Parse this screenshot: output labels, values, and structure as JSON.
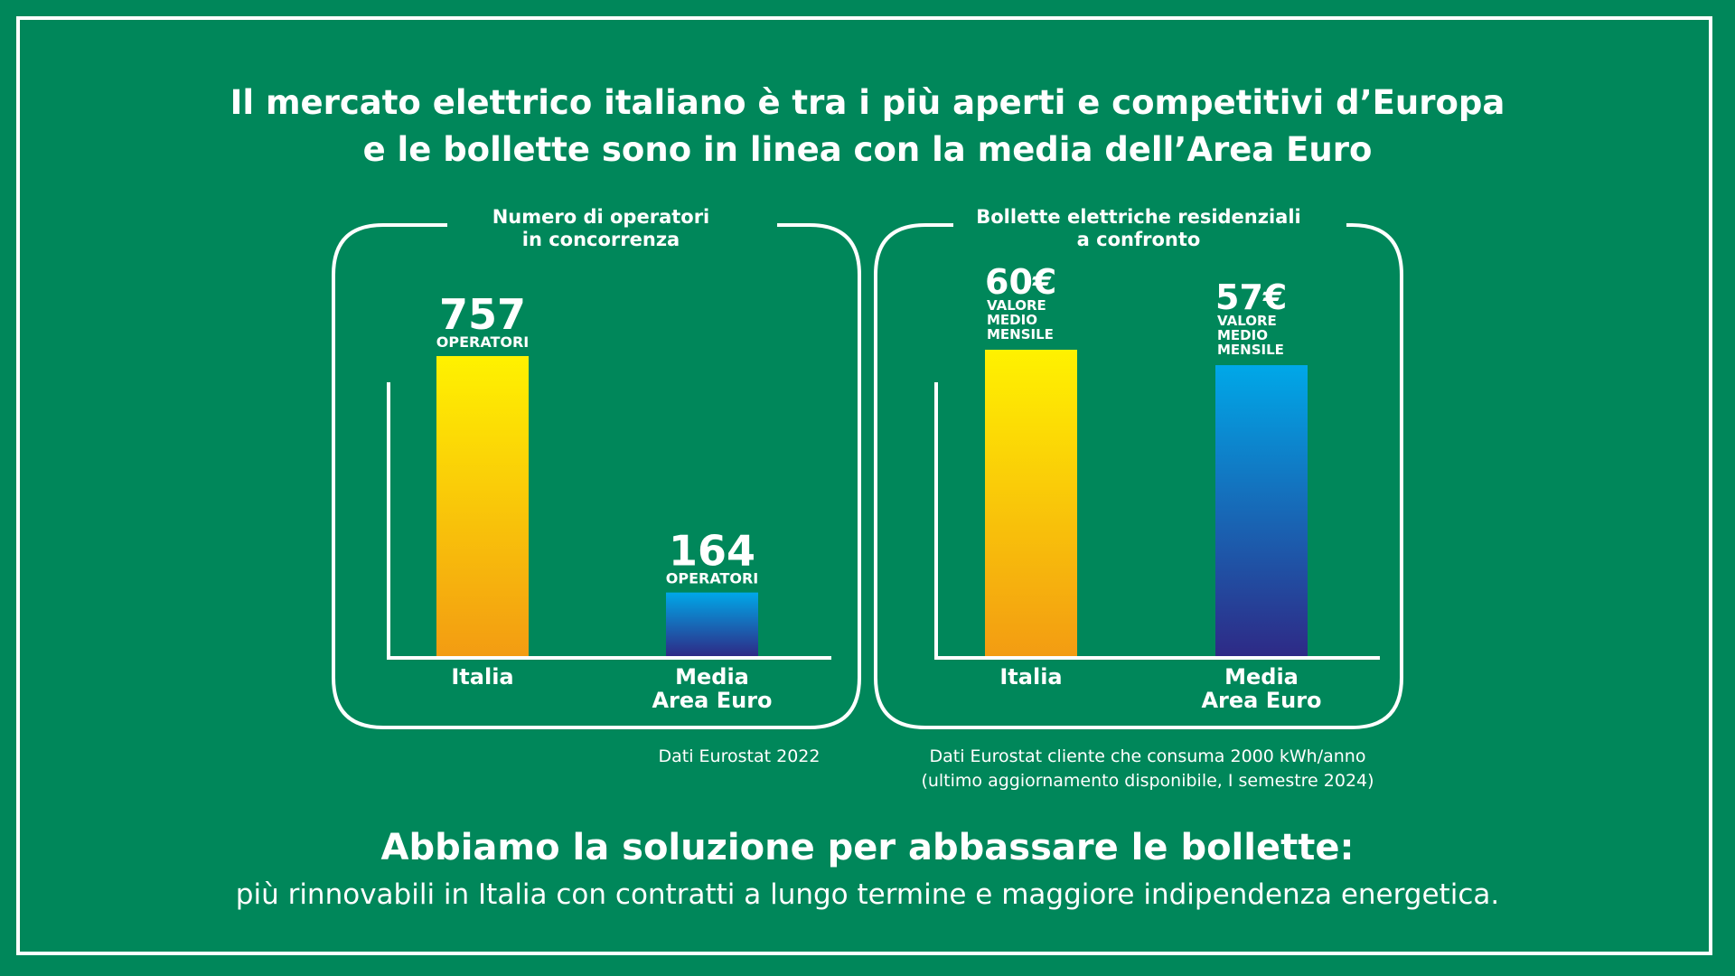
{
  "headline": {
    "line1": "Il mercato elettrico italiano è tra i più aperti e competitivi d’Europa",
    "line2": "e le bollette sono in linea con la media dell’Area Euro"
  },
  "colors": {
    "background": "#00875a",
    "italia_gradient": [
      "#fff200",
      "#f39c12"
    ],
    "euro_gradient": [
      "#00a8e8",
      "#2e2a86"
    ]
  },
  "chart_data": [
    {
      "type": "bar",
      "title_line1": "Numero di operatori",
      "title_line2": "in concorrenza",
      "categories": [
        "Italia",
        "Media Area Euro"
      ],
      "category_lines": [
        [
          "Italia"
        ],
        [
          "Media",
          "Area Euro"
        ]
      ],
      "values": [
        757,
        164
      ],
      "value_labels": [
        "757",
        "164"
      ],
      "unit_lines": [
        [
          "OPERATORI"
        ],
        [
          "OPERATORI"
        ]
      ],
      "ylim": [
        0,
        757
      ],
      "note": [
        "Dati Eurostat 2022"
      ]
    },
    {
      "type": "bar",
      "title_line1": "Bollette elettriche residenziali",
      "title_line2": "a confronto",
      "categories": [
        "Italia",
        "Media Area Euro"
      ],
      "category_lines": [
        [
          "Italia"
        ],
        [
          "Media",
          "Area Euro"
        ]
      ],
      "values": [
        60,
        57
      ],
      "value_labels": [
        "60€",
        "57€"
      ],
      "unit_lines": [
        [
          "VALORE",
          "MEDIO",
          "MENSILE"
        ],
        [
          "VALORE",
          "MEDIO",
          "MENSILE"
        ]
      ],
      "ylim": [
        0,
        60
      ],
      "note": [
        "Dati Eurostat cliente che consuma 2000 kWh/anno",
        "(ultimo aggiornamento disponibile, I semestre 2024)"
      ]
    }
  ],
  "bottom": {
    "title": "Abbiamo la soluzione per abbassare le bollette:",
    "subtitle": "più rinnovabili in Italia con contratti a lungo termine e maggiore indipendenza energetica."
  }
}
